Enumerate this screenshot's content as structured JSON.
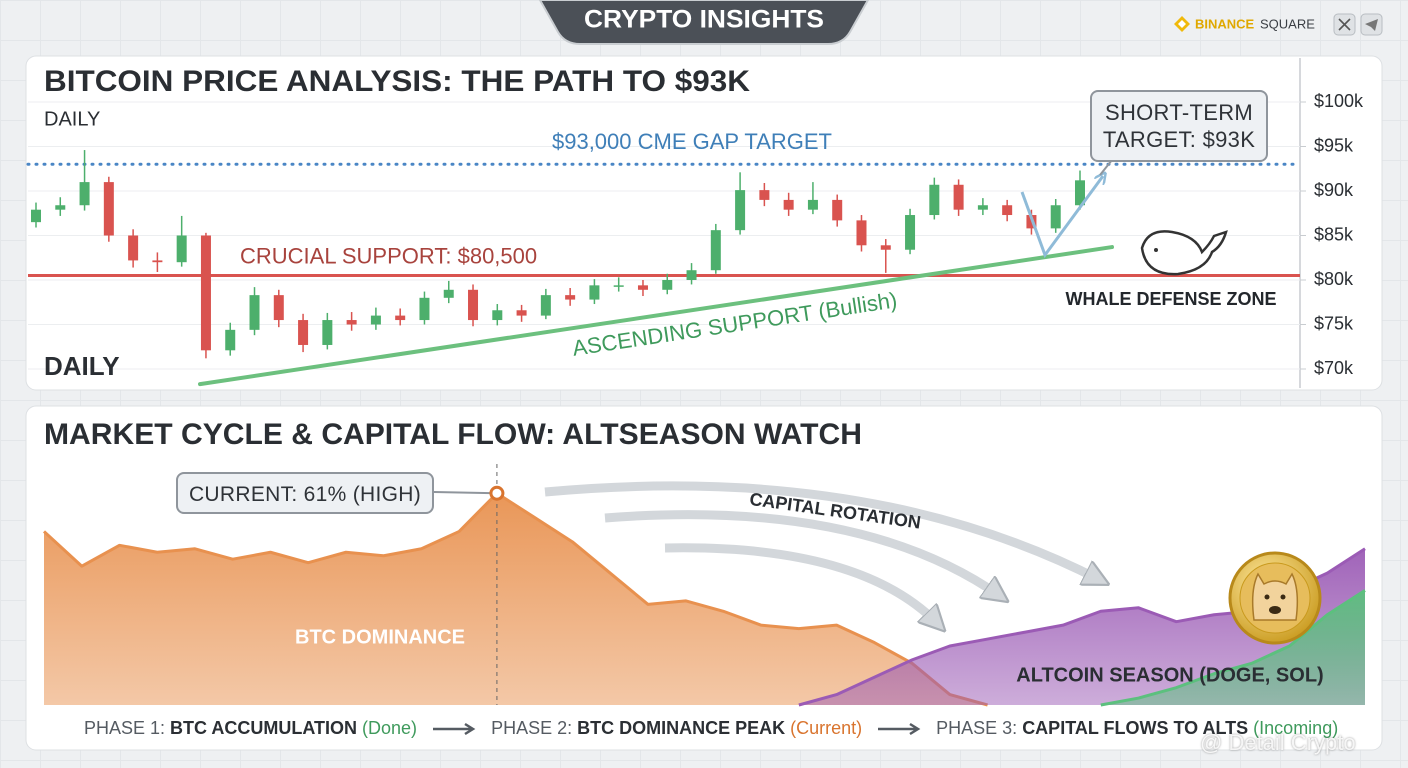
{
  "header": {
    "title": "CRYPTO INSIGHTS",
    "brand": "BINANCE",
    "brand_suffix": "SQUARE"
  },
  "watermark": "@ Detail Crypto",
  "chart_data": [
    {
      "type": "candlestick",
      "title": "BITCOIN PRICE ANALYSIS: THE PATH TO $93K",
      "subtitle": "DAILY",
      "timeframe_label": "DAILY",
      "up_color": "#4daf6c",
      "down_color": "#d9534f",
      "open": [
        86500,
        87900,
        88400,
        91000,
        85000,
        82200,
        82000,
        85000,
        72100,
        74400,
        78300,
        75500,
        72700,
        75500,
        75000,
        76000,
        75500,
        78000,
        78900,
        75500,
        76600,
        76000,
        78300,
        77800,
        79400,
        79400,
        78900,
        80000,
        81100,
        85600,
        90100,
        89000,
        87900,
        89000,
        86700,
        83900,
        83400,
        87300,
        90700,
        87900,
        88400,
        87300,
        85800,
        88400
      ],
      "high": [
        88700,
        89300,
        94600,
        91600,
        85700,
        83100,
        87200,
        85300,
        75200,
        79200,
        78900,
        76200,
        76300,
        76400,
        76900,
        76800,
        78700,
        79900,
        79500,
        77300,
        77200,
        79000,
        79100,
        80100,
        80300,
        80000,
        80700,
        81900,
        86300,
        92100,
        90900,
        89800,
        91000,
        89600,
        87300,
        84600,
        88000,
        91500,
        91300,
        89200,
        89000,
        87900,
        89100,
        92300
      ],
      "low": [
        85900,
        87200,
        87800,
        84300,
        81400,
        80900,
        81500,
        71200,
        71500,
        73800,
        74700,
        71900,
        72200,
        74300,
        74400,
        74900,
        75000,
        77400,
        74800,
        74900,
        75300,
        75600,
        77100,
        77300,
        78700,
        78200,
        78400,
        79500,
        80700,
        85100,
        88300,
        87200,
        87400,
        86000,
        83200,
        80800,
        82900,
        86800,
        87200,
        87300,
        86600,
        85100,
        85300,
        87900
      ],
      "close": [
        87900,
        88400,
        91000,
        85000,
        82200,
        82000,
        85000,
        72100,
        74400,
        78300,
        75500,
        72700,
        75500,
        75000,
        76000,
        75500,
        78000,
        78900,
        75500,
        76600,
        76000,
        78300,
        77800,
        79400,
        79400,
        78900,
        80000,
        81100,
        85600,
        90100,
        89000,
        87900,
        89000,
        86700,
        83900,
        83400,
        87300,
        90700,
        87900,
        88400,
        87300,
        85800,
        88400,
        91200
      ],
      "ylim": [
        67500,
        105000
      ],
      "yticks": [
        {
          "value": 70000,
          "label": "$70k"
        },
        {
          "value": 75000,
          "label": "$75k"
        },
        {
          "value": 80000,
          "label": "$80k"
        },
        {
          "value": 85000,
          "label": "$85k"
        },
        {
          "value": 90000,
          "label": "$90k"
        },
        {
          "value": 95000,
          "label": "$95k"
        },
        {
          "value": 100000,
          "label": "$100k"
        }
      ],
      "grid": true,
      "reference_lines": [
        {
          "label": "$93,000 CME GAP TARGET",
          "value": 93000,
          "color": "#4a86c5",
          "style": "dotted"
        },
        {
          "label": "CRUCIAL SUPPORT: $80,500",
          "value": 80500,
          "color": "#d9534f",
          "style": "solid"
        }
      ],
      "trendline": {
        "label": "ASCENDING SUPPORT (Bullish)",
        "values": [
          68300,
          83700
        ],
        "color": "#6cc07e"
      },
      "callout": "SHORT-TERM TARGET: $93K",
      "zone_label": "WHALE DEFENSE ZONE"
    },
    {
      "type": "area",
      "title": "MARKET CYCLE & CAPITAL FLOW: ALTSEASON WATCH",
      "ylim": [
        0,
        70
      ],
      "series": [
        {
          "name": "BTC DOMINANCE",
          "color": "#e8914f",
          "values": [
            50,
            40,
            46,
            44,
            45,
            42,
            44,
            41,
            44,
            43,
            45,
            50,
            61,
            54,
            47,
            38,
            29,
            30,
            27,
            23,
            22,
            23,
            18,
            12,
            3,
            0,
            null,
            null,
            null,
            null,
            null,
            null,
            null,
            null,
            null,
            null
          ]
        },
        {
          "name": "ALTCOIN SEASON (DOGE, SOL)",
          "color": "#9b5bb5",
          "values": [
            null,
            null,
            null,
            null,
            null,
            null,
            null,
            null,
            null,
            null,
            null,
            null,
            null,
            null,
            null,
            null,
            null,
            null,
            null,
            null,
            0,
            3,
            8,
            13,
            17,
            19,
            21,
            23,
            27,
            28,
            24,
            26,
            27,
            33,
            38,
            45
          ]
        },
        {
          "color": "#5cc07e",
          "values": [
            null,
            null,
            null,
            null,
            null,
            null,
            null,
            null,
            null,
            null,
            null,
            null,
            null,
            null,
            null,
            null,
            null,
            null,
            null,
            null,
            null,
            null,
            null,
            null,
            null,
            null,
            null,
            null,
            0,
            2,
            5,
            9,
            12,
            17,
            26,
            33
          ]
        }
      ],
      "callout": "CURRENT: 61% (HIGH)",
      "flow_label": "CAPITAL ROTATION",
      "phases": [
        {
          "label": "PHASE 1:",
          "text": "BTC ACCUMULATION",
          "status": "(Done)",
          "color": "#3f9a5c"
        },
        {
          "label": "PHASE 2:",
          "text": "BTC DOMINANCE PEAK",
          "status": "(Current)",
          "color": "#d9742e"
        },
        {
          "label": "PHASE 3:",
          "text": "CAPITAL FLOWS TO ALTS",
          "status": "(Incoming)",
          "color": "#3f9a5c"
        }
      ]
    }
  ]
}
